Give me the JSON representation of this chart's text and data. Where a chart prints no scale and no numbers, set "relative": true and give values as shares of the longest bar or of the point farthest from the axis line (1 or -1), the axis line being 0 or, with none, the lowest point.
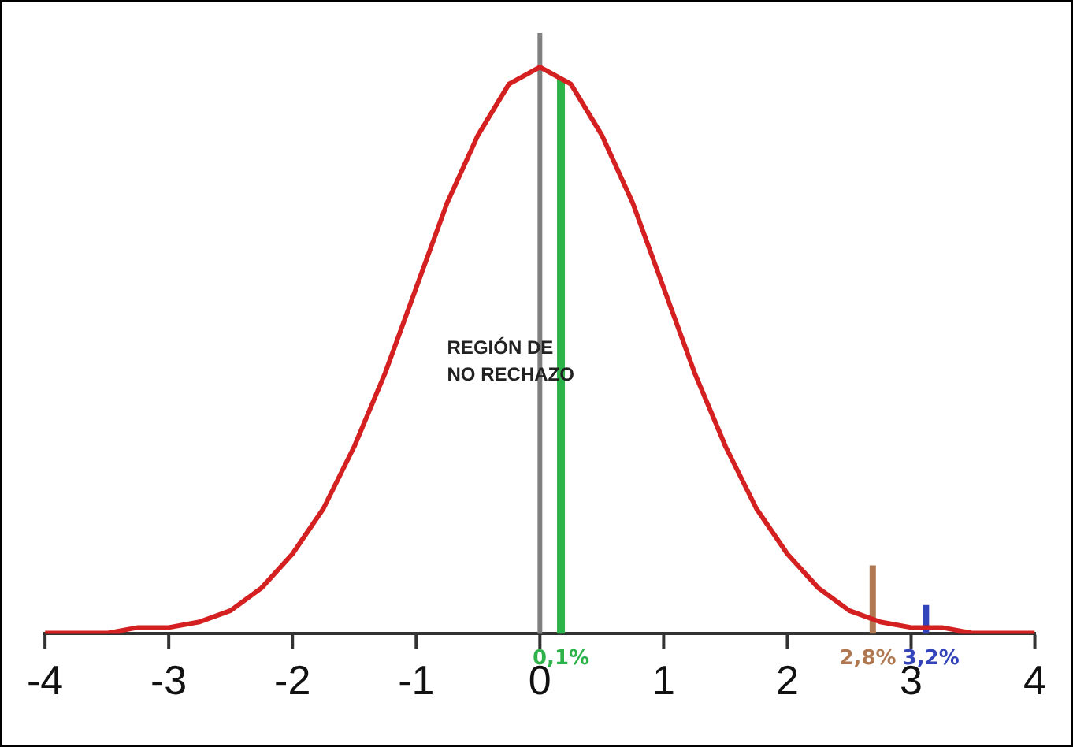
{
  "chart_data": {
    "type": "line",
    "relative": true,
    "xlim": [
      -4,
      4
    ],
    "xticks": [
      -4,
      -3,
      -2,
      -1,
      0,
      1,
      2,
      3,
      4
    ],
    "grid": false,
    "legend": false,
    "marker": "none",
    "tick_labels": "x",
    "annotations": [
      "REGIÓN DE\nNO RECHAZO"
    ],
    "ref_lines": [
      {
        "axis": "x",
        "value": 0,
        "color": "#808080"
      }
    ],
    "series": [
      {
        "color": "#d42020",
        "x": [
          -4,
          -3.75,
          -3.5,
          -3.25,
          -3,
          -2.75,
          -2.5,
          -2.25,
          -2,
          -1.75,
          -1.5,
          -1.25,
          -1,
          -0.75,
          -0.5,
          -0.25,
          0,
          0.25,
          0.5,
          0.75,
          1,
          1.25,
          1.5,
          1.75,
          2,
          2.25,
          2.5,
          2.75,
          3,
          3.25,
          3.5,
          3.75,
          4
        ],
        "values": [
          0,
          0,
          0,
          0.01,
          0.01,
          0.02,
          0.04,
          0.08,
          0.14,
          0.22,
          0.33,
          0.46,
          0.61,
          0.76,
          0.88,
          0.97,
          1,
          0.97,
          0.88,
          0.76,
          0.61,
          0.46,
          0.33,
          0.22,
          0.14,
          0.08,
          0.04,
          0.02,
          0.01,
          0.01,
          0,
          0,
          0
        ]
      },
      {
        "name": "0,1%",
        "color": "#2db34a",
        "x": [
          0.17,
          0.17
        ],
        "values": [
          0,
          0.98
        ]
      },
      {
        "name": "2,8%",
        "color": "#b07850",
        "x": [
          2.69,
          2.69
        ],
        "values": [
          0,
          0.12
        ]
      },
      {
        "name": "3,2%",
        "color": "#3344bb",
        "x": [
          3.12,
          3.12
        ],
        "values": [
          0,
          0.05
        ]
      }
    ]
  }
}
